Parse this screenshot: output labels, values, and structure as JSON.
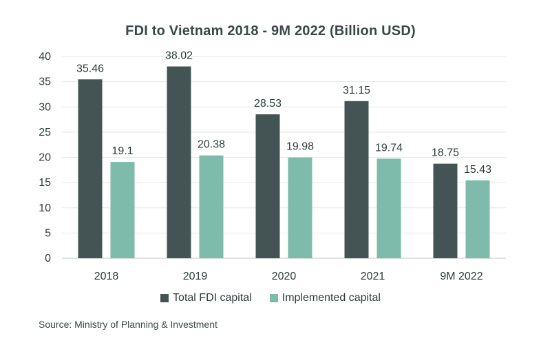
{
  "chart_data": {
    "type": "bar",
    "title": "FDI to Vietnam 2018 - 9M 2022 (Billion USD)",
    "categories": [
      "2018",
      "2019",
      "2020",
      "2021",
      "9M 2022"
    ],
    "series": [
      {
        "name": "Total FDI capital",
        "values": [
          35.46,
          38.02,
          28.53,
          31.15,
          18.75
        ],
        "color": "#445454",
        "labels": [
          "35.46",
          "38.02",
          "28.53",
          "31.15",
          "18.75"
        ]
      },
      {
        "name": "Implemented capital",
        "values": [
          19.1,
          20.38,
          19.98,
          19.74,
          15.43
        ],
        "color": "#7ebbaa",
        "labels": [
          "19.1",
          "20.38",
          "19.98",
          "19.74",
          "15.43"
        ]
      }
    ],
    "ylim": [
      0,
      40
    ],
    "yticks": [
      "0",
      "5",
      "10",
      "15",
      "20",
      "25",
      "30",
      "35",
      "40"
    ],
    "grid": true,
    "legend_position": "bottom"
  },
  "source": "Source: Ministry of Planning & Investment"
}
